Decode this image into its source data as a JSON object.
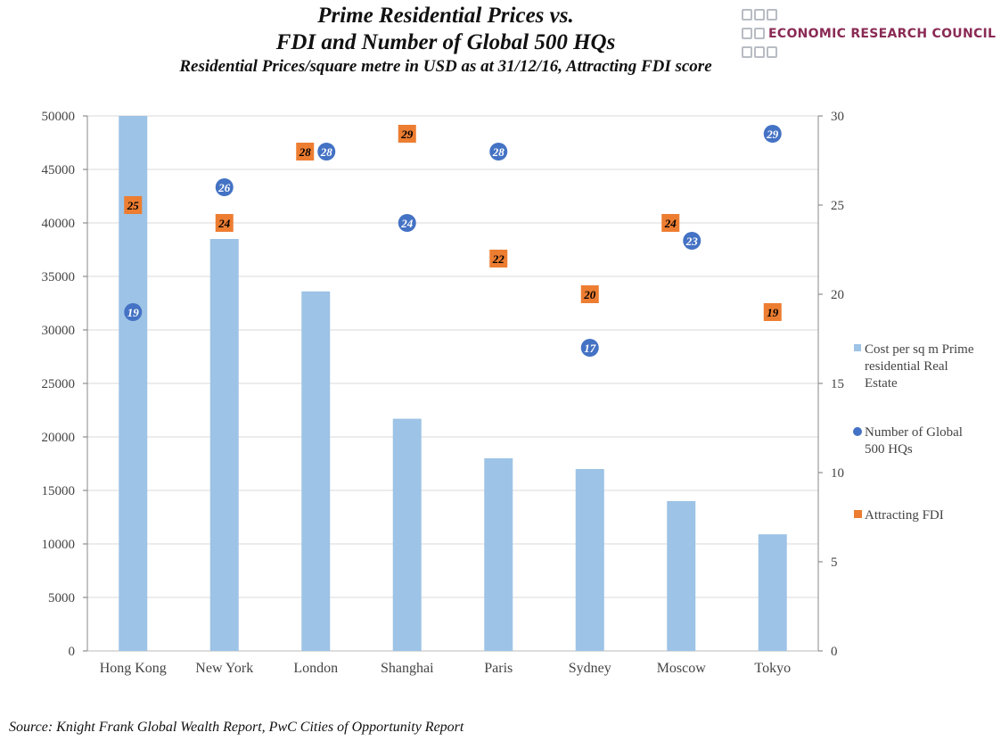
{
  "header": {
    "title_line1": "Prime Residential Prices vs.",
    "title_line2": "FDI and Number of Global 500 HQs",
    "subtitle": "Residential Prices/square metre in USD as at 31/12/16, Attracting FDI score",
    "logo_text": "ECONOMIC RESEARCH COUNCIL"
  },
  "footer": {
    "source": "Source: Knight Frank Global Wealth Report, PwC Cities of Opportunity Report"
  },
  "chart_data": {
    "type": "bar",
    "categories": [
      "Hong Kong",
      "New York",
      "London",
      "Shanghai",
      "Paris",
      "Sydney",
      "Moscow",
      "Tokyo"
    ],
    "left_axis": {
      "ylim": [
        0,
        50000
      ],
      "ticks": [
        0,
        5000,
        10000,
        15000,
        20000,
        25000,
        30000,
        35000,
        40000,
        45000,
        50000
      ]
    },
    "right_axis": {
      "ylim": [
        0,
        30
      ],
      "ticks": [
        0,
        5,
        10,
        15,
        20,
        25,
        30
      ]
    },
    "grid": true,
    "legend_position": "right",
    "series": [
      {
        "name": "Cost per sq m Prime residential Real Estate",
        "type": "bar",
        "axis": "left",
        "color": "#9dc3e6",
        "values": [
          50000,
          38500,
          33600,
          21700,
          18000,
          17000,
          14000,
          10900
        ]
      },
      {
        "name": "Number of Global 500 HQs",
        "type": "scatter",
        "marker": "circle",
        "axis": "right",
        "color": "#4472c4",
        "values": [
          19,
          26,
          28,
          24,
          28,
          17,
          23,
          29
        ]
      },
      {
        "name": "Attracting FDI",
        "type": "scatter",
        "marker": "square",
        "axis": "right",
        "color": "#ed7d31",
        "values": [
          25,
          24,
          28,
          29,
          22,
          20,
          24,
          19
        ]
      }
    ]
  }
}
